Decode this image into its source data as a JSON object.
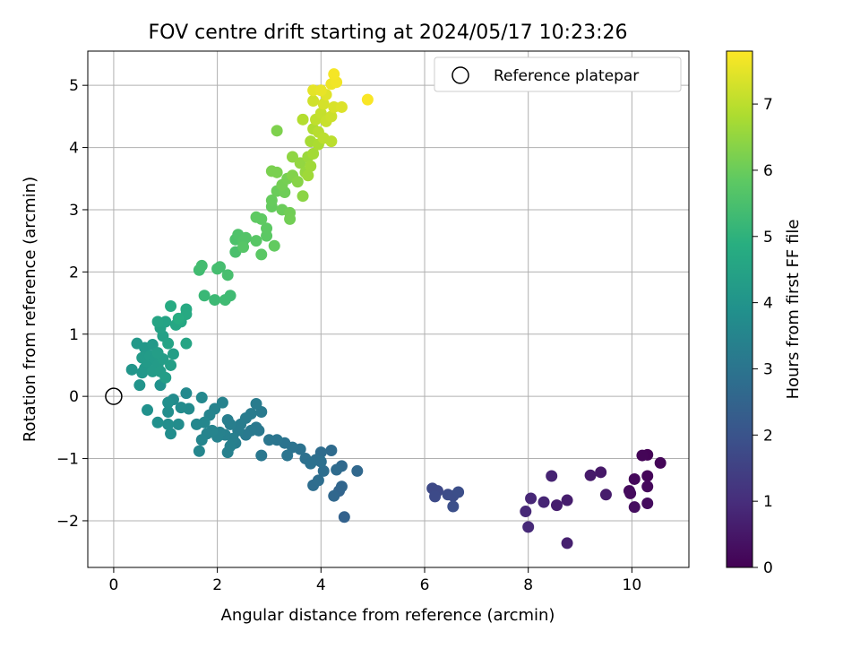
{
  "chart_data": {
    "type": "scatter",
    "title": "FOV centre drift starting at 2024/05/17 10:23:26",
    "xlabel": "Angular distance from reference (arcmin)",
    "ylabel": "Rotation from reference (arcmin)",
    "xlim": [
      -0.5,
      11.1
    ],
    "ylim": [
      -2.75,
      5.55
    ],
    "xticks": [
      0,
      2,
      4,
      6,
      8,
      10
    ],
    "yticks": [
      -2,
      -1,
      0,
      1,
      2,
      3,
      4,
      5
    ],
    "grid": true,
    "legend": {
      "position": "top-right",
      "entries": [
        "Reference platepar"
      ]
    },
    "reference_point": {
      "x": 0,
      "y": 0
    },
    "colormap": "viridis",
    "colorbar": {
      "label": "Hours from first FF file",
      "range": [
        0,
        7.8
      ],
      "ticks": [
        0,
        1,
        2,
        3,
        4,
        5,
        6,
        7
      ]
    },
    "points": [
      {
        "x": 10.3,
        "y": -0.94,
        "c": 0.05
      },
      {
        "x": 10.2,
        "y": -0.95,
        "c": 0.08
      },
      {
        "x": 10.55,
        "y": -1.07,
        "c": 0.1
      },
      {
        "x": 10.3,
        "y": -1.28,
        "c": 0.12
      },
      {
        "x": 10.05,
        "y": -1.33,
        "c": 0.15
      },
      {
        "x": 10.3,
        "y": -1.45,
        "c": 0.18
      },
      {
        "x": 9.95,
        "y": -1.52,
        "c": 0.2
      },
      {
        "x": 9.97,
        "y": -1.56,
        "c": 0.22
      },
      {
        "x": 10.3,
        "y": -1.72,
        "c": 0.25
      },
      {
        "x": 10.05,
        "y": -1.78,
        "c": 0.28
      },
      {
        "x": 9.4,
        "y": -1.22,
        "c": 0.5
      },
      {
        "x": 9.2,
        "y": -1.27,
        "c": 0.55
      },
      {
        "x": 9.5,
        "y": -1.58,
        "c": 0.6
      },
      {
        "x": 8.75,
        "y": -1.67,
        "c": 0.62
      },
      {
        "x": 8.55,
        "y": -1.75,
        "c": 0.65
      },
      {
        "x": 8.75,
        "y": -2.36,
        "c": 0.68
      },
      {
        "x": 8.45,
        "y": -1.28,
        "c": 0.75
      },
      {
        "x": 8.3,
        "y": -1.7,
        "c": 0.8
      },
      {
        "x": 8.05,
        "y": -1.64,
        "c": 0.85
      },
      {
        "x": 7.95,
        "y": -1.85,
        "c": 0.88
      },
      {
        "x": 8.0,
        "y": -2.1,
        "c": 0.9
      },
      {
        "x": 6.15,
        "y": -1.48,
        "c": 1.7
      },
      {
        "x": 6.25,
        "y": -1.52,
        "c": 1.72
      },
      {
        "x": 6.2,
        "y": -1.61,
        "c": 1.75
      },
      {
        "x": 6.45,
        "y": -1.58,
        "c": 1.8
      },
      {
        "x": 6.55,
        "y": -1.6,
        "c": 1.82
      },
      {
        "x": 6.65,
        "y": -1.54,
        "c": 1.85
      },
      {
        "x": 6.55,
        "y": -1.77,
        "c": 1.9
      },
      {
        "x": 4.45,
        "y": -1.94,
        "c": 2.45
      },
      {
        "x": 4.35,
        "y": -1.52,
        "c": 2.5
      },
      {
        "x": 4.4,
        "y": -1.45,
        "c": 2.55
      },
      {
        "x": 4.25,
        "y": -1.6,
        "c": 2.6
      },
      {
        "x": 4.7,
        "y": -1.2,
        "c": 2.62
      },
      {
        "x": 4.4,
        "y": -1.12,
        "c": 2.65
      },
      {
        "x": 4.3,
        "y": -1.18,
        "c": 2.7
      },
      {
        "x": 4.2,
        "y": -0.87,
        "c": 2.72
      },
      {
        "x": 4.0,
        "y": -0.9,
        "c": 2.75
      },
      {
        "x": 3.85,
        "y": -1.43,
        "c": 2.78
      },
      {
        "x": 3.95,
        "y": -1.35,
        "c": 2.8
      },
      {
        "x": 4.05,
        "y": -1.2,
        "c": 2.8
      },
      {
        "x": 3.9,
        "y": -1.02,
        "c": 2.82
      },
      {
        "x": 4.0,
        "y": -1.05,
        "c": 2.85
      },
      {
        "x": 3.7,
        "y": -1.0,
        "c": 2.88
      },
      {
        "x": 3.8,
        "y": -1.08,
        "c": 2.9
      },
      {
        "x": 3.6,
        "y": -0.85,
        "c": 2.92
      },
      {
        "x": 3.45,
        "y": -0.82,
        "c": 2.95
      },
      {
        "x": 3.3,
        "y": -0.75,
        "c": 2.97
      },
      {
        "x": 3.35,
        "y": -0.95,
        "c": 3.0
      },
      {
        "x": 3.15,
        "y": -0.7,
        "c": 3.02
      },
      {
        "x": 3.0,
        "y": -0.7,
        "c": 3.05
      },
      {
        "x": 2.85,
        "y": -0.95,
        "c": 3.08
      },
      {
        "x": 2.8,
        "y": -0.55,
        "c": 3.1
      },
      {
        "x": 2.75,
        "y": -0.5,
        "c": 3.12
      },
      {
        "x": 2.65,
        "y": -0.55,
        "c": 3.15
      },
      {
        "x": 2.55,
        "y": -0.62,
        "c": 3.15
      },
      {
        "x": 2.85,
        "y": -0.25,
        "c": 3.17
      },
      {
        "x": 2.75,
        "y": -0.12,
        "c": 3.2
      },
      {
        "x": 2.65,
        "y": -0.28,
        "c": 3.2
      },
      {
        "x": 2.55,
        "y": -0.35,
        "c": 3.22
      },
      {
        "x": 2.45,
        "y": -0.45,
        "c": 3.25
      },
      {
        "x": 2.4,
        "y": -0.55,
        "c": 3.25
      },
      {
        "x": 2.35,
        "y": -0.75,
        "c": 3.28
      },
      {
        "x": 2.25,
        "y": -0.45,
        "c": 3.3
      },
      {
        "x": 2.2,
        "y": -0.38,
        "c": 3.3
      },
      {
        "x": 2.3,
        "y": -0.68,
        "c": 3.32
      },
      {
        "x": 2.25,
        "y": -0.8,
        "c": 3.35
      },
      {
        "x": 2.2,
        "y": -0.9,
        "c": 3.35
      },
      {
        "x": 2.15,
        "y": -0.62,
        "c": 3.38
      },
      {
        "x": 2.05,
        "y": -0.58,
        "c": 3.4
      },
      {
        "x": 2.0,
        "y": -0.65,
        "c": 3.42
      },
      {
        "x": 2.1,
        "y": -0.1,
        "c": 3.42
      },
      {
        "x": 1.95,
        "y": -0.2,
        "c": 3.45
      },
      {
        "x": 1.85,
        "y": -0.3,
        "c": 3.48
      },
      {
        "x": 1.9,
        "y": -0.55,
        "c": 3.5
      },
      {
        "x": 1.8,
        "y": -0.6,
        "c": 3.5
      },
      {
        "x": 1.7,
        "y": -0.7,
        "c": 3.52
      },
      {
        "x": 1.65,
        "y": -0.88,
        "c": 3.55
      },
      {
        "x": 1.75,
        "y": -0.42,
        "c": 3.58
      },
      {
        "x": 1.6,
        "y": -0.45,
        "c": 3.6
      },
      {
        "x": 1.7,
        "y": -0.02,
        "c": 3.62
      },
      {
        "x": 1.4,
        "y": 0.05,
        "c": 3.65
      },
      {
        "x": 1.45,
        "y": -0.2,
        "c": 3.68
      },
      {
        "x": 1.3,
        "y": -0.18,
        "c": 3.7
      },
      {
        "x": 1.15,
        "y": -0.05,
        "c": 3.72
      },
      {
        "x": 1.25,
        "y": -0.45,
        "c": 3.75
      },
      {
        "x": 1.1,
        "y": -0.6,
        "c": 3.78
      },
      {
        "x": 1.05,
        "y": -0.45,
        "c": 3.8
      },
      {
        "x": 1.05,
        "y": -0.25,
        "c": 3.82
      },
      {
        "x": 1.05,
        "y": -0.1,
        "c": 3.85
      },
      {
        "x": 0.85,
        "y": -0.42,
        "c": 3.88
      },
      {
        "x": 0.65,
        "y": -0.22,
        "c": 3.9
      },
      {
        "x": 0.9,
        "y": 0.18,
        "c": 3.92
      },
      {
        "x": 0.5,
        "y": 0.18,
        "c": 4.0
      },
      {
        "x": 0.35,
        "y": 0.43,
        "c": 4.05
      },
      {
        "x": 0.55,
        "y": 0.38,
        "c": 4.1
      },
      {
        "x": 0.6,
        "y": 0.45,
        "c": 4.12
      },
      {
        "x": 0.45,
        "y": 0.85,
        "c": 4.15
      },
      {
        "x": 0.6,
        "y": 0.78,
        "c": 4.15
      },
      {
        "x": 0.75,
        "y": 0.83,
        "c": 4.18
      },
      {
        "x": 0.55,
        "y": 0.62,
        "c": 4.2
      },
      {
        "x": 0.65,
        "y": 0.55,
        "c": 4.2
      },
      {
        "x": 0.7,
        "y": 0.65,
        "c": 4.22
      },
      {
        "x": 0.8,
        "y": 0.6,
        "c": 4.22
      },
      {
        "x": 0.85,
        "y": 0.5,
        "c": 4.25
      },
      {
        "x": 0.75,
        "y": 0.4,
        "c": 4.25
      },
      {
        "x": 0.9,
        "y": 0.4,
        "c": 4.28
      },
      {
        "x": 1.0,
        "y": 0.3,
        "c": 4.3
      },
      {
        "x": 0.95,
        "y": 0.6,
        "c": 4.3
      },
      {
        "x": 0.85,
        "y": 0.7,
        "c": 4.32
      },
      {
        "x": 1.1,
        "y": 0.5,
        "c": 4.35
      },
      {
        "x": 1.15,
        "y": 0.68,
        "c": 4.35
      },
      {
        "x": 0.95,
        "y": 0.97,
        "c": 4.4
      },
      {
        "x": 0.9,
        "y": 1.1,
        "c": 4.45
      },
      {
        "x": 1.0,
        "y": 1.2,
        "c": 4.5
      },
      {
        "x": 1.05,
        "y": 0.85,
        "c": 4.5
      },
      {
        "x": 1.4,
        "y": 0.85,
        "c": 4.55
      },
      {
        "x": 0.85,
        "y": 1.2,
        "c": 4.55
      },
      {
        "x": 1.2,
        "y": 1.15,
        "c": 4.6
      },
      {
        "x": 1.3,
        "y": 1.2,
        "c": 4.65
      },
      {
        "x": 1.4,
        "y": 1.4,
        "c": 4.7
      },
      {
        "x": 1.4,
        "y": 1.32,
        "c": 4.72
      },
      {
        "x": 1.1,
        "y": 1.45,
        "c": 4.75
      },
      {
        "x": 1.25,
        "y": 1.25,
        "c": 4.8
      },
      {
        "x": 1.75,
        "y": 1.62,
        "c": 5.2
      },
      {
        "x": 1.95,
        "y": 1.55,
        "c": 5.25
      },
      {
        "x": 2.15,
        "y": 1.55,
        "c": 5.3
      },
      {
        "x": 2.25,
        "y": 1.62,
        "c": 5.3
      },
      {
        "x": 1.65,
        "y": 2.03,
        "c": 5.35
      },
      {
        "x": 1.7,
        "y": 2.1,
        "c": 5.38
      },
      {
        "x": 2.0,
        "y": 2.05,
        "c": 5.4
      },
      {
        "x": 2.05,
        "y": 2.08,
        "c": 5.42
      },
      {
        "x": 2.2,
        "y": 1.95,
        "c": 5.45
      },
      {
        "x": 2.35,
        "y": 2.32,
        "c": 5.5
      },
      {
        "x": 2.35,
        "y": 2.52,
        "c": 5.55
      },
      {
        "x": 2.4,
        "y": 2.6,
        "c": 5.6
      },
      {
        "x": 2.5,
        "y": 2.5,
        "c": 5.65
      },
      {
        "x": 2.55,
        "y": 2.55,
        "c": 5.65
      },
      {
        "x": 2.5,
        "y": 2.4,
        "c": 5.7
      },
      {
        "x": 2.75,
        "y": 2.5,
        "c": 5.75
      },
      {
        "x": 2.85,
        "y": 2.28,
        "c": 5.78
      },
      {
        "x": 2.95,
        "y": 2.58,
        "c": 5.8
      },
      {
        "x": 2.95,
        "y": 2.7,
        "c": 5.82
      },
      {
        "x": 2.75,
        "y": 2.88,
        "c": 5.85
      },
      {
        "x": 2.85,
        "y": 2.85,
        "c": 5.85
      },
      {
        "x": 3.1,
        "y": 2.42,
        "c": 5.9
      },
      {
        "x": 3.05,
        "y": 3.05,
        "c": 5.92
      },
      {
        "x": 3.05,
        "y": 3.15,
        "c": 5.95
      },
      {
        "x": 3.15,
        "y": 3.3,
        "c": 6.0
      },
      {
        "x": 3.25,
        "y": 3.0,
        "c": 6.0
      },
      {
        "x": 3.3,
        "y": 3.28,
        "c": 6.05
      },
      {
        "x": 3.4,
        "y": 2.95,
        "c": 6.08
      },
      {
        "x": 3.4,
        "y": 2.85,
        "c": 6.1
      },
      {
        "x": 3.25,
        "y": 3.4,
        "c": 6.12
      },
      {
        "x": 3.35,
        "y": 3.5,
        "c": 6.15
      },
      {
        "x": 3.05,
        "y": 3.62,
        "c": 6.2
      },
      {
        "x": 3.15,
        "y": 3.6,
        "c": 6.2
      },
      {
        "x": 3.15,
        "y": 4.27,
        "c": 6.25
      },
      {
        "x": 3.45,
        "y": 3.55,
        "c": 6.3
      },
      {
        "x": 3.55,
        "y": 3.45,
        "c": 6.35
      },
      {
        "x": 3.65,
        "y": 3.22,
        "c": 6.4
      },
      {
        "x": 3.45,
        "y": 3.85,
        "c": 6.45
      },
      {
        "x": 3.6,
        "y": 3.75,
        "c": 6.5
      },
      {
        "x": 3.7,
        "y": 3.6,
        "c": 6.55
      },
      {
        "x": 3.75,
        "y": 3.85,
        "c": 6.6
      },
      {
        "x": 3.8,
        "y": 3.7,
        "c": 6.65
      },
      {
        "x": 3.75,
        "y": 3.55,
        "c": 6.65
      },
      {
        "x": 3.85,
        "y": 3.9,
        "c": 6.7
      },
      {
        "x": 3.8,
        "y": 4.1,
        "c": 6.75
      },
      {
        "x": 3.95,
        "y": 4.05,
        "c": 6.8
      },
      {
        "x": 3.85,
        "y": 4.3,
        "c": 6.85
      },
      {
        "x": 3.65,
        "y": 4.45,
        "c": 6.9
      },
      {
        "x": 3.95,
        "y": 4.25,
        "c": 6.95
      },
      {
        "x": 4.05,
        "y": 4.15,
        "c": 7.0
      },
      {
        "x": 4.2,
        "y": 4.1,
        "c": 7.0
      },
      {
        "x": 3.9,
        "y": 4.45,
        "c": 7.05
      },
      {
        "x": 4.0,
        "y": 4.55,
        "c": 7.1
      },
      {
        "x": 4.1,
        "y": 4.42,
        "c": 7.15
      },
      {
        "x": 4.2,
        "y": 4.5,
        "c": 7.2
      },
      {
        "x": 3.85,
        "y": 4.75,
        "c": 7.25
      },
      {
        "x": 4.05,
        "y": 4.7,
        "c": 7.3
      },
      {
        "x": 4.25,
        "y": 4.65,
        "c": 7.35
      },
      {
        "x": 4.4,
        "y": 4.65,
        "c": 7.4
      },
      {
        "x": 4.1,
        "y": 4.85,
        "c": 7.45
      },
      {
        "x": 3.85,
        "y": 4.92,
        "c": 7.5
      },
      {
        "x": 4.0,
        "y": 4.92,
        "c": 7.55
      },
      {
        "x": 4.2,
        "y": 5.02,
        "c": 7.6
      },
      {
        "x": 4.3,
        "y": 5.05,
        "c": 7.65
      },
      {
        "x": 4.25,
        "y": 5.18,
        "c": 7.7
      },
      {
        "x": 4.9,
        "y": 4.77,
        "c": 7.75
      }
    ]
  }
}
